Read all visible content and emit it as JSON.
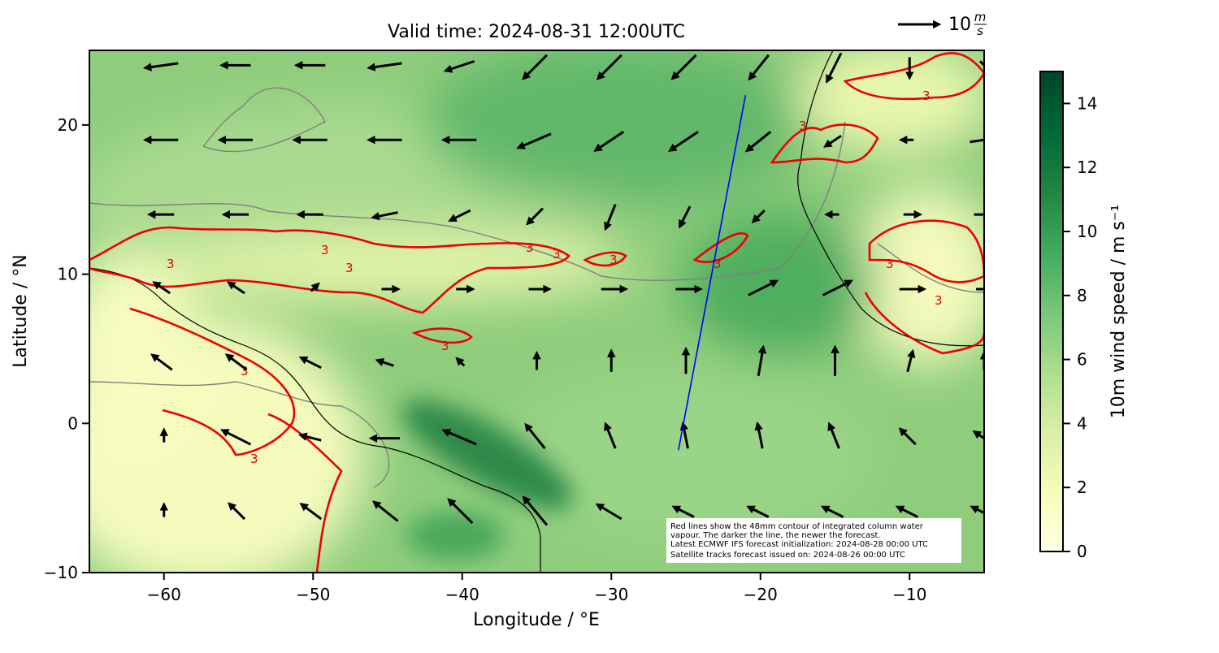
{
  "title": "Valid time: 2024-08-31 12:00UTC",
  "x_label": "Longitude / °E",
  "y_label": "Latitude / °N",
  "xlim": [
    -65,
    -5
  ],
  "ylim": [
    -10,
    25
  ],
  "xticks": [
    {
      "value": -60,
      "label": "−60"
    },
    {
      "value": -50,
      "label": "−50"
    },
    {
      "value": -40,
      "label": "−40"
    },
    {
      "value": -30,
      "label": "−30"
    },
    {
      "value": -20,
      "label": "−20"
    },
    {
      "value": -10,
      "label": "−10"
    }
  ],
  "yticks": [
    {
      "value": -10,
      "label": "−10"
    },
    0,
    10,
    20
  ],
  "colorbar": {
    "label": "10m wind speed / m s⁻¹",
    "lim": [
      0,
      15
    ],
    "ticks": [
      0,
      2,
      4,
      6,
      8,
      10,
      12,
      14
    ],
    "colors": [
      "#ffffe5",
      "#f7fcb9",
      "#d9f0a3",
      "#addd8e",
      "#78c679",
      "#41ab5d",
      "#238443",
      "#006837",
      "#004529"
    ]
  },
  "quiver_key": {
    "value": 10,
    "unit_num": "m",
    "unit_den": "s"
  },
  "contour_label": "3",
  "satellite_track": {
    "lon": [
      -25.5,
      -21
    ],
    "lat": [
      -1.8,
      22
    ],
    "color": "#0000ff"
  },
  "wind_arrows": {
    "lon": [
      -60,
      -55,
      -50,
      -45,
      -40,
      -35,
      -30,
      -25,
      -20,
      -15,
      -10,
      -5
    ],
    "rows": [
      {
        "lat": 24,
        "u": [
          -7,
          -6,
          -6,
          -7,
          -6,
          -5,
          -5,
          -5,
          -4,
          -3,
          0,
          2
        ],
        "v": [
          -1,
          0,
          0,
          -1,
          -2,
          -5,
          -5,
          -5,
          -5,
          -6,
          -4,
          -2
        ]
      },
      {
        "lat": 19,
        "u": [
          -7,
          -7,
          -7,
          -7,
          -7,
          -7,
          -6,
          -6,
          -5,
          -3,
          -2,
          7
        ],
        "v": [
          0,
          0,
          0,
          0,
          0,
          -3,
          -4,
          -4,
          -4,
          -2,
          0,
          1
        ]
      },
      {
        "lat": 14,
        "u": [
          -5,
          -5,
          -5,
          -5,
          -4,
          -3,
          -2,
          -2,
          -2,
          -2,
          3,
          5
        ],
        "v": [
          0,
          0,
          0,
          -1,
          -2,
          -3,
          -5,
          -4,
          -2,
          0,
          0,
          0
        ]
      },
      {
        "lat": 9,
        "u": [
          -3,
          -3,
          1,
          3,
          3,
          4,
          5,
          5,
          6,
          6,
          5,
          4
        ],
        "v": [
          2,
          2,
          1,
          0,
          0,
          0,
          0,
          0,
          3,
          3,
          0,
          0
        ]
      },
      {
        "lat": 4,
        "u": [
          -4,
          -4,
          -4,
          -3,
          -1,
          0,
          0,
          0,
          1,
          0,
          1,
          0
        ],
        "v": [
          3,
          3,
          2,
          1,
          1,
          3,
          4,
          5,
          6,
          6,
          4,
          3
        ]
      },
      {
        "lat": -1,
        "u": [
          0,
          -6,
          -4,
          -6,
          -7,
          -4,
          -2,
          -1,
          -1,
          -2,
          -3,
          -3
        ],
        "v": [
          2,
          3,
          1,
          0,
          3,
          5,
          5,
          5,
          5,
          5,
          3,
          2
        ]
      },
      {
        "lat": -6,
        "u": [
          0,
          -3,
          -4,
          -5,
          -5,
          -5,
          -5,
          -4,
          -4,
          -4,
          -4,
          -4
        ],
        "v": [
          2,
          3,
          3,
          4,
          5,
          6,
          3,
          2,
          2,
          2,
          2,
          2
        ]
      }
    ]
  },
  "annotation": [
    "Red lines show the 48mm contour of integrated column water",
    "vapour. The darker the line, the newer the forecast.",
    "Latest ECMWF IFS forecast initialization: 2024-08-28 00:00 UTC",
    "Satellite tracks forecast issued on: 2024-08-26 00:00 UTC"
  ]
}
